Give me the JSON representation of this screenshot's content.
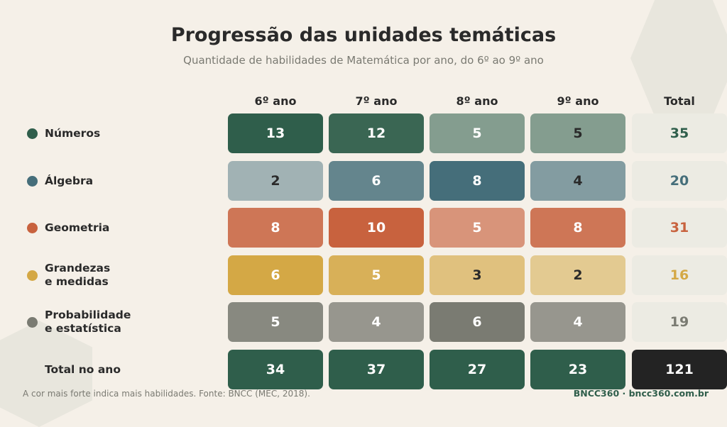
{
  "header": {
    "title": "Progressão das unidades temáticas",
    "subtitle": "Quantidade de habilidades de Matemática por ano, do 6º ao 9º ano"
  },
  "chart_data": {
    "type": "heatmap",
    "title": "Progressão das unidades temáticas",
    "subtitle": "Quantidade de habilidades de Matemática por ano, do 6º ao 9º ano",
    "columns": [
      "6º ano",
      "7º ano",
      "8º ano",
      "9º ano"
    ],
    "total_column_label": "Total",
    "rows": [
      {
        "label": "Números",
        "values": [
          13,
          12,
          5,
          5
        ],
        "total": 35,
        "color": "#2f5e4b"
      },
      {
        "label": "Álgebra",
        "values": [
          2,
          6,
          8,
          4
        ],
        "total": 20,
        "color": "#456e7a"
      },
      {
        "label": "Geometria",
        "values": [
          8,
          10,
          5,
          8
        ],
        "total": 31,
        "color": "#c8623e"
      },
      {
        "label": "Grandezas\ne medidas",
        "values": [
          6,
          5,
          3,
          2
        ],
        "total": 16,
        "color": "#d4a845"
      },
      {
        "label": "Probabilidade\ne estatística",
        "values": [
          5,
          4,
          6,
          4
        ],
        "total": 19,
        "color": "#7a7b72"
      }
    ],
    "totals_row": {
      "label": "Total no ano",
      "values": [
        34,
        37,
        27,
        23
      ],
      "total": 121
    }
  },
  "colors": {
    "background": "#f5f0e8",
    "total_cell_bg": "#ecebe3",
    "totals_row_bg": "#2f5e4b",
    "grand_total_bg": "#232323"
  },
  "footer": {
    "note": "A cor mais forte indica mais habilidades. Fonte: BNCC (MEC, 2018).",
    "brand": "BNCC360 · bncc360.com.br"
  }
}
